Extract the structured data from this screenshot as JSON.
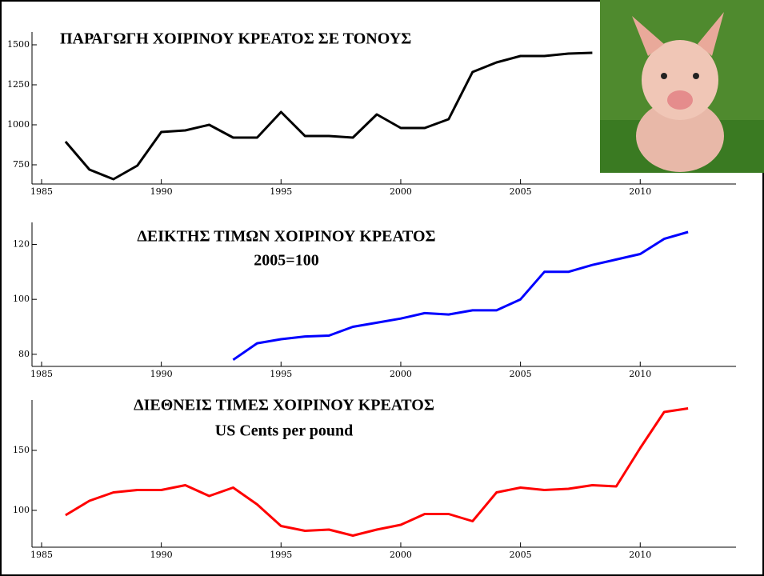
{
  "chart_data": [
    {
      "type": "line",
      "title": "ΠΑΡΑΓΩΓΗ ΧΟΙΡΙΝΟΥ ΚΡΕΑΤΟΣ ΣΕ ΤΟΝΟΥΣ",
      "x": [
        1986,
        1987,
        1988,
        1989,
        1990,
        1991,
        1992,
        1993,
        1994,
        1995,
        1996,
        1997,
        1998,
        1999,
        2000,
        2001,
        2002,
        2003,
        2004,
        2005,
        2006,
        2007,
        2008
      ],
      "values": [
        895,
        720,
        660,
        745,
        955,
        965,
        1000,
        920,
        920,
        1080,
        930,
        930,
        920,
        1065,
        980,
        980,
        1035,
        1330,
        1390,
        1430,
        1430,
        1445,
        1450
      ],
      "color": "#000000",
      "xlim": [
        1984.6,
        2014
      ],
      "xticks": [
        1985,
        1990,
        1995,
        2000,
        2005,
        2010
      ],
      "ylim": [
        630,
        1580
      ],
      "yticks": [
        750,
        1000,
        1250,
        1500
      ]
    },
    {
      "type": "line",
      "title": "ΔΕΙΚΤΗΣ ΤΙΜΩΝ ΧΟΙΡΙΝΟΥ ΚΡΕΑΤΟΣ",
      "subtitle": "2005=100",
      "x": [
        1993,
        1994,
        1995,
        1996,
        1997,
        1998,
        1999,
        2000,
        2001,
        2002,
        2003,
        2004,
        2005,
        2006,
        2007,
        2008,
        2009,
        2010,
        2011,
        2012
      ],
      "values": [
        78,
        84,
        85.5,
        86.5,
        86.8,
        90,
        91.5,
        93,
        95,
        94.5,
        96,
        96,
        100,
        110,
        110,
        112.5,
        114.5,
        116.5,
        122,
        124.5
      ],
      "color": "#0000ff",
      "xlim": [
        1984.6,
        2014
      ],
      "xticks": [
        1985,
        1990,
        1995,
        2000,
        2005,
        2010
      ],
      "ylim": [
        75.6,
        128
      ],
      "yticks": [
        80,
        100,
        120
      ]
    },
    {
      "type": "line",
      "title": "ΔΙΕΘΝΕΙΣ ΤΙΜΕΣ ΧΟΙΡΙΝΟΥ ΚΡΕΑΤΟΣ",
      "subtitle": "US Cents per pound",
      "x": [
        1986,
        1987,
        1988,
        1989,
        1990,
        1991,
        1992,
        1993,
        1994,
        1995,
        1996,
        1997,
        1998,
        1999,
        2000,
        2001,
        2002,
        2003,
        2004,
        2005,
        2006,
        2007,
        2008,
        2009,
        2010,
        2011,
        2012
      ],
      "values": [
        96,
        108,
        115,
        117,
        117,
        121,
        112,
        119,
        105,
        87,
        83,
        84,
        79,
        84,
        88,
        97,
        97,
        91,
        115,
        119,
        117,
        118,
        121,
        120,
        152,
        182,
        185
      ],
      "color": "#ff0000",
      "xlim": [
        1984.6,
        2014
      ],
      "xticks": [
        1985,
        1990,
        1995,
        2000,
        2005,
        2010
      ],
      "ylim": [
        69.3,
        192
      ],
      "yticks": [
        100,
        150
      ]
    }
  ]
}
